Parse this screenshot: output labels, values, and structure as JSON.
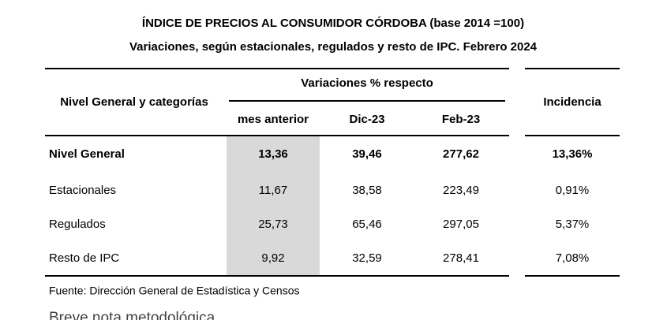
{
  "header": {
    "title": "ÍNDICE DE PRECIOS AL CONSUMIDOR CÓRDOBA (base 2014 =100)",
    "subtitle": "Variaciones, según estacionales, regulados y resto de IPC.  Febrero 2024"
  },
  "table": {
    "row_header": "Nivel General y categorías",
    "group_header": "Variaciones % respecto",
    "columns": [
      "mes anterior",
      "Dic-23",
      "Feb-23"
    ],
    "incidence_header": "Incidencia",
    "rows": [
      [
        "Nivel General",
        "13,36",
        "39,46",
        "277,62",
        "13,36%"
      ],
      [
        "Estacionales",
        "11,67",
        "38,58",
        "223,49",
        "0,91%"
      ],
      [
        "Regulados",
        "25,73",
        "65,46",
        "297,05",
        "5,37%"
      ],
      [
        "Resto de IPC",
        "9,92",
        "32,59",
        "278,41",
        "7,08%"
      ]
    ]
  },
  "footer": {
    "source": "Fuente: Dirección General de Estadística y Censos",
    "next_heading": "Breve nota metodológica"
  }
}
